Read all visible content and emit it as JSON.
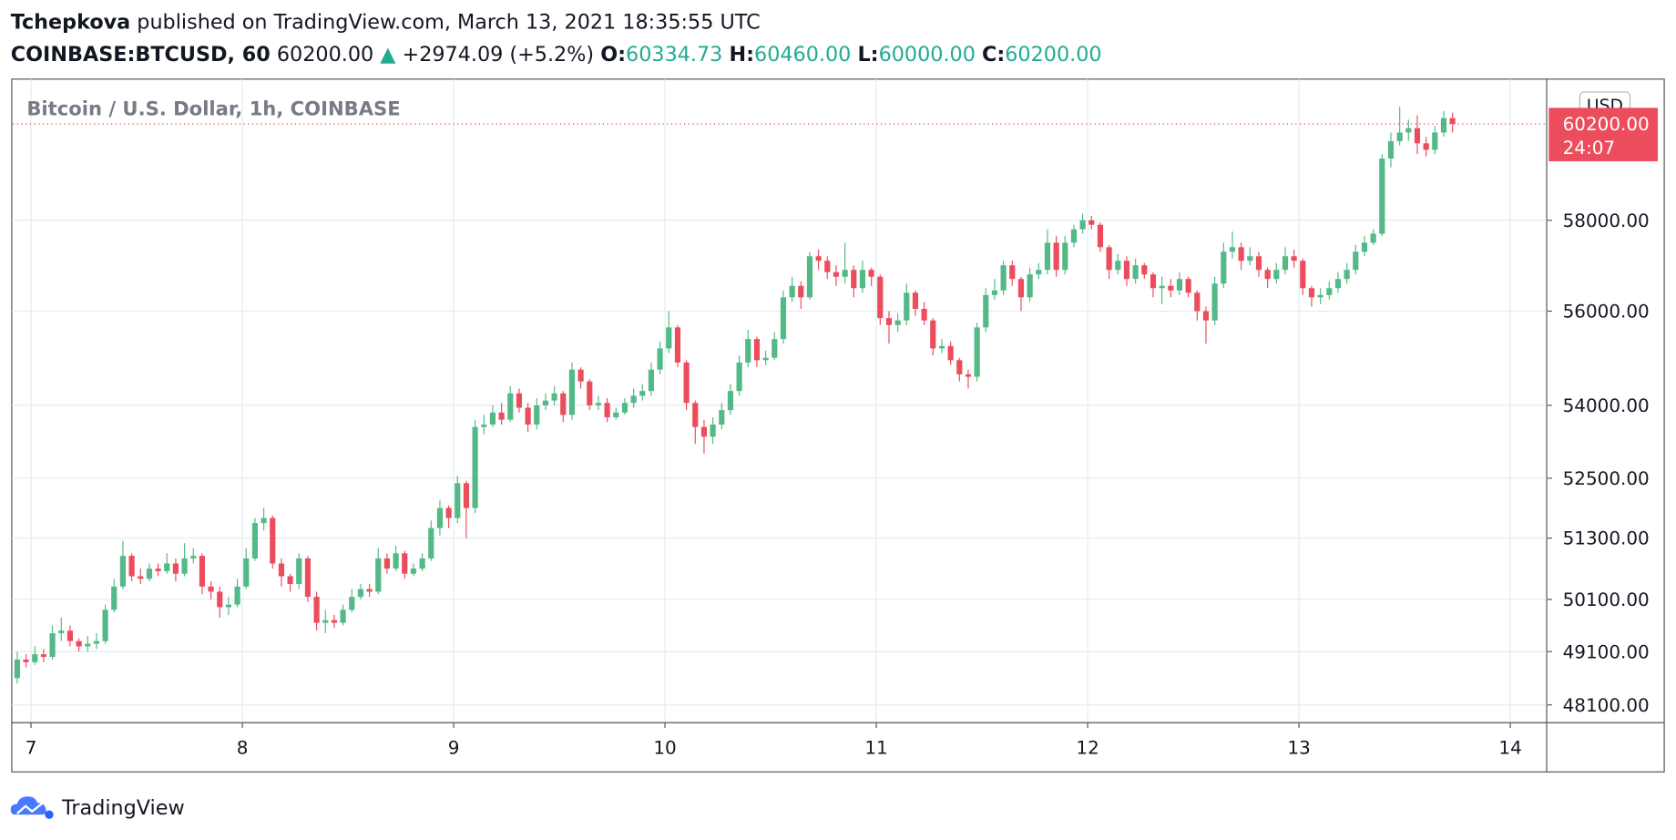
{
  "header": {
    "author": "Tchepkova",
    "published": "published on TradingView.com, March 13, 2021 18:35:55 UTC",
    "symbol": "COINBASE:BTCUSD, 60",
    "last": "60200.00",
    "change": "+2974.09 (+5.2%)",
    "o_label": "O:",
    "o": "60334.73",
    "h_label": "H:",
    "h": "60460.00",
    "l_label": "L:",
    "l": "60000.00",
    "c_label": "C:",
    "c": "60200.00"
  },
  "chart_data": {
    "type": "candlestick",
    "title": "Bitcoin / U.S. Dollar, 1h, COINBASE",
    "currency": "USD",
    "open": [
      48600,
      48950,
      48900,
      49050,
      49000,
      49450,
      49500,
      49300,
      49200,
      49250,
      49300,
      49900,
      50350,
      50950,
      50550,
      50500,
      50700,
      50650,
      50800,
      50600,
      50900,
      50950,
      50350,
      50250,
      49950,
      50000,
      50350,
      50900,
      51600,
      51700,
      50800,
      50550,
      50400,
      50900,
      50150,
      49650,
      49700,
      49650,
      49900,
      50150,
      50300,
      50250,
      50900,
      50700,
      51000,
      50600,
      50700,
      50900,
      51500,
      51900,
      51700,
      52400,
      51900,
      53550,
      53600,
      53850,
      53700,
      54250,
      53950,
      53600,
      54000,
      54100,
      54250,
      53800,
      54750,
      54500,
      54000,
      54050,
      53750,
      53850,
      54050,
      54200,
      54300,
      54750,
      55200,
      55650,
      54900,
      54050,
      53550,
      53350,
      53600,
      53900,
      54300,
      54900,
      55400,
      54950,
      55000,
      55400,
      56300,
      56550,
      56300,
      57200,
      57100,
      56850,
      56750,
      56900,
      56500,
      56900,
      56750,
      55850,
      55700,
      55800,
      56400,
      56050,
      55800,
      55200,
      55250,
      54950,
      54650,
      54600,
      55650,
      56350,
      56450,
      57000,
      56700,
      56300,
      56800,
      56900,
      57500,
      56900,
      57500,
      57800,
      58000,
      57900,
      57400,
      56900,
      57100,
      56700,
      57000,
      56800,
      56500,
      56550,
      56450,
      56700,
      56400,
      56000,
      55800,
      56600,
      57300,
      57400,
      57100,
      57200,
      56900,
      56700,
      56900,
      57200,
      57100,
      56500,
      56300,
      56350,
      56500,
      56700,
      56900,
      57300,
      57500,
      57700,
      59400,
      59800,
      60000,
      60100,
      59750,
      59600,
      60000,
      60334.73
    ],
    "high": [
      49100,
      49050,
      49200,
      49150,
      49600,
      49750,
      49600,
      49350,
      49400,
      49450,
      50000,
      50500,
      51250,
      51000,
      50700,
      50800,
      50800,
      51000,
      50900,
      51200,
      51100,
      51000,
      50450,
      50350,
      50150,
      50500,
      51100,
      51700,
      51900,
      51750,
      50900,
      50600,
      51000,
      50950,
      50250,
      49900,
      49800,
      50000,
      50300,
      50400,
      50400,
      51100,
      51000,
      51150,
      51050,
      50800,
      51000,
      51650,
      52050,
      51950,
      52550,
      52450,
      53700,
      53800,
      54000,
      54050,
      54400,
      54350,
      54050,
      54150,
      54250,
      54400,
      54300,
      54900,
      54800,
      54550,
      54200,
      54150,
      53950,
      54150,
      54350,
      54450,
      54900,
      55350,
      56000,
      55700,
      54950,
      54100,
      53700,
      53750,
      54050,
      54450,
      55050,
      55600,
      55450,
      55150,
      55550,
      56450,
      56750,
      56650,
      57300,
      57350,
      57200,
      57000,
      57500,
      57000,
      57100,
      56950,
      56800,
      56000,
      55950,
      56600,
      56450,
      56200,
      55850,
      55400,
      55350,
      55000,
      54750,
      55750,
      56500,
      56700,
      57100,
      57100,
      56750,
      56950,
      57050,
      57800,
      57650,
      57650,
      57900,
      58150,
      58100,
      57950,
      57450,
      57250,
      57200,
      57150,
      57050,
      56850,
      56750,
      56700,
      56850,
      56750,
      56450,
      56100,
      56750,
      57500,
      57750,
      57500,
      57400,
      57300,
      56950,
      57050,
      57400,
      57350,
      57150,
      56550,
      56500,
      56650,
      56850,
      57050,
      57450,
      57650,
      57800,
      59500,
      60000,
      60600,
      60300,
      60400,
      59900,
      60150,
      60500,
      60460
    ],
    "low": [
      48500,
      48800,
      48850,
      48900,
      48950,
      49300,
      49200,
      49100,
      49100,
      49150,
      49250,
      49850,
      50300,
      50450,
      50400,
      50450,
      50550,
      50600,
      50450,
      50550,
      50800,
      50200,
      50100,
      49750,
      49800,
      49950,
      50300,
      50850,
      51450,
      50700,
      50350,
      50250,
      50300,
      50050,
      49500,
      49450,
      49550,
      49600,
      49850,
      50100,
      50150,
      50200,
      50600,
      50650,
      50500,
      50550,
      50650,
      50850,
      51350,
      51500,
      51600,
      51300,
      51800,
      53400,
      53550,
      53600,
      53650,
      53850,
      53450,
      53500,
      53900,
      54000,
      53650,
      53700,
      54350,
      53900,
      53900,
      53650,
      53700,
      53800,
      53950,
      54100,
      54200,
      54650,
      55100,
      54800,
      53900,
      53200,
      53000,
      53200,
      53500,
      53800,
      54200,
      54800,
      54800,
      54850,
      54950,
      55300,
      56200,
      56050,
      56250,
      56900,
      56700,
      56550,
      56600,
      56300,
      56400,
      56550,
      55700,
      55300,
      55550,
      55700,
      55900,
      55700,
      55050,
      55100,
      54850,
      54500,
      54350,
      54500,
      55550,
      56250,
      56350,
      56550,
      56000,
      56200,
      56700,
      56800,
      56750,
      56800,
      57400,
      57700,
      57800,
      57300,
      56700,
      56800,
      56550,
      56600,
      56700,
      56300,
      56150,
      56300,
      56350,
      56300,
      55800,
      55300,
      55700,
      56500,
      57150,
      56900,
      57000,
      56750,
      56500,
      56600,
      56800,
      56950,
      56350,
      56100,
      56150,
      56250,
      56400,
      56600,
      56800,
      57200,
      57450,
      57650,
      59200,
      59700,
      59800,
      59500,
      59450,
      59500,
      59900,
      60000
    ],
    "close": [
      48950,
      48900,
      49050,
      49000,
      49450,
      49500,
      49300,
      49200,
      49250,
      49300,
      49900,
      50350,
      50950,
      50550,
      50500,
      50700,
      50650,
      50800,
      50600,
      50900,
      50950,
      50350,
      50250,
      49950,
      50000,
      50350,
      50900,
      51600,
      51700,
      50800,
      50550,
      50400,
      50900,
      50150,
      49650,
      49700,
      49650,
      49900,
      50150,
      50300,
      50250,
      50900,
      50700,
      51000,
      50600,
      50700,
      50900,
      51500,
      51900,
      51700,
      52400,
      51900,
      53550,
      53600,
      53850,
      53700,
      54250,
      53950,
      53600,
      54000,
      54100,
      54250,
      53800,
      54750,
      54500,
      54000,
      54050,
      53750,
      53850,
      54050,
      54200,
      54300,
      54750,
      55200,
      55650,
      54900,
      54050,
      53550,
      53350,
      53600,
      53900,
      54300,
      54900,
      55400,
      54950,
      55000,
      55400,
      56300,
      56550,
      56300,
      57200,
      57100,
      56850,
      56750,
      56900,
      56500,
      56900,
      56750,
      55850,
      55700,
      55800,
      56400,
      56050,
      55800,
      55200,
      55250,
      54950,
      54650,
      54600,
      55650,
      56350,
      56450,
      57000,
      56700,
      56300,
      56800,
      56900,
      57500,
      56900,
      57500,
      57800,
      58000,
      57900,
      57400,
      56900,
      57100,
      56700,
      57000,
      56800,
      56500,
      56550,
      56450,
      56700,
      56400,
      56000,
      55800,
      56600,
      57300,
      57400,
      57100,
      57200,
      56900,
      56700,
      56900,
      57200,
      57100,
      56500,
      56300,
      56350,
      56500,
      56700,
      56900,
      57300,
      57500,
      57700,
      59400,
      59800,
      60000,
      60100,
      59750,
      59600,
      60000,
      60334.73,
      60200
    ],
    "up_color": "#53b987",
    "down_color": "#eb4d5c",
    "xlim": [
      6.914,
      14.172
    ],
    "xticks": [
      7,
      8,
      9,
      10,
      11,
      12,
      13,
      14
    ],
    "ylim": [
      47790,
      61250
    ],
    "log_scale": true,
    "grid": true,
    "yticks": [
      {
        "value": 48100,
        "label": "48100.00"
      },
      {
        "value": 49100,
        "label": "49100.00"
      },
      {
        "value": 50100,
        "label": "50100.00"
      },
      {
        "value": 51300,
        "label": "51300.00"
      },
      {
        "value": 52500,
        "label": "52500.00"
      },
      {
        "value": 54000,
        "label": "54000.00"
      },
      {
        "value": 56000,
        "label": "56000.00"
      },
      {
        "value": 58000,
        "label": "58000.00"
      }
    ],
    "last_price_label": "60200.00",
    "countdown": "24:07"
  },
  "footer": {
    "brand": "TradingView"
  }
}
